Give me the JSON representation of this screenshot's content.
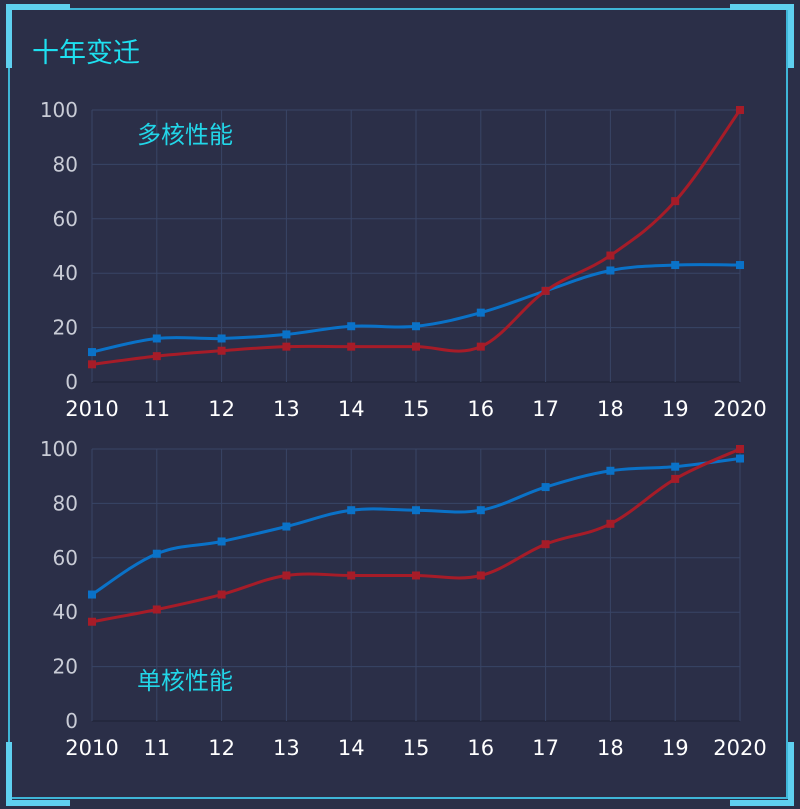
{
  "title": "十年变迁",
  "colors": {
    "accent": "#1ee0f0",
    "frame": "#3fb6d8",
    "background": "#2b2f48",
    "grid": "#394566"
  },
  "chart_data": [
    {
      "type": "line",
      "label": "多核性能",
      "categories": [
        "2010",
        "11",
        "12",
        "13",
        "14",
        "15",
        "16",
        "17",
        "18",
        "19",
        "2020"
      ],
      "ylim": [
        0,
        100
      ],
      "yticks": [
        0,
        20,
        40,
        60,
        80,
        100
      ],
      "grid": true,
      "smooth": true,
      "series": [
        {
          "color": "#0a72c8",
          "values": [
            11,
            16,
            16,
            17.5,
            20.5,
            20.5,
            25.5,
            33.5,
            41,
            43,
            43
          ]
        },
        {
          "color": "#a61c28",
          "values": [
            6.5,
            9.5,
            11.5,
            13,
            13,
            13,
            13,
            33.5,
            46.5,
            66.5,
            100
          ]
        }
      ]
    },
    {
      "type": "line",
      "label": "单核性能",
      "categories": [
        "2010",
        "11",
        "12",
        "13",
        "14",
        "15",
        "16",
        "17",
        "18",
        "19",
        "2020"
      ],
      "ylim": [
        0,
        100
      ],
      "yticks": [
        0,
        20,
        40,
        60,
        80,
        100
      ],
      "grid": true,
      "smooth": true,
      "series": [
        {
          "color": "#0a72c8",
          "values": [
            46.5,
            61.5,
            66,
            71.5,
            77.5,
            77.5,
            77.5,
            86,
            92,
            93.5,
            96.5
          ]
        },
        {
          "color": "#a61c28",
          "values": [
            36.5,
            41,
            46.5,
            53.5,
            53.5,
            53.5,
            53.5,
            65,
            72.5,
            89,
            100
          ]
        }
      ]
    }
  ]
}
